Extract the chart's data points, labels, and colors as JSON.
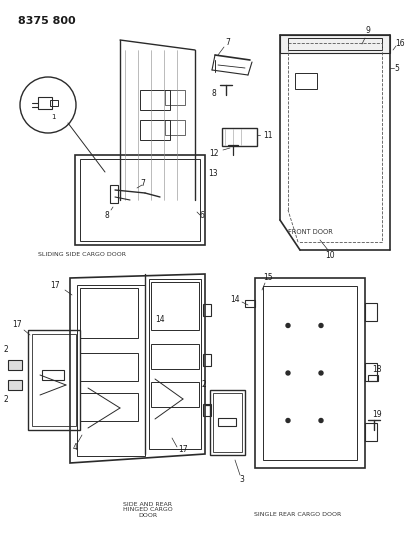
{
  "title": "8375 800",
  "background_color": "#ffffff",
  "line_color": "#2a2a2a",
  "text_color": "#1a1a1a",
  "fig_width": 4.1,
  "fig_height": 5.33,
  "dpi": 100,
  "labels": {
    "sliding_side": "SLIDING SIDE CARGO DOOR",
    "front_door": "FRONT DOOR",
    "side_rear": "SIDE AND REAR\nHINGED CARGO\nDOOR",
    "single_rear": "SINGLE REAR CARGO DOOR"
  }
}
